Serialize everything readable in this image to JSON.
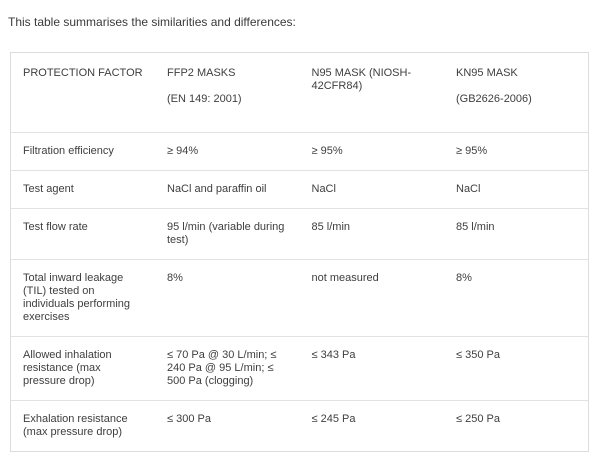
{
  "page": {
    "intro": "This table summarises the similarities and differences:"
  },
  "colors": {
    "background": "#ffffff",
    "text": "#3e3e3e",
    "border": "#dcdcdc",
    "row_divider": "#e2e2e2"
  },
  "table": {
    "columns": [
      {
        "title": "PROTECTION FACTOR",
        "subtitle": ""
      },
      {
        "title": "FFP2 MASKS",
        "subtitle": "(EN 149: 2001)"
      },
      {
        "title": "N95 MASK (NIOSH-42CFR84)",
        "subtitle": ""
      },
      {
        "title": "KN95 MASK",
        "subtitle": "(GB2626-2006)"
      }
    ],
    "rows": [
      {
        "label": "Filtration efficiency",
        "values": [
          "≥ 94%",
          "≥ 95%",
          "≥ 95%"
        ]
      },
      {
        "label": "Test agent",
        "values": [
          "NaCl and paraffin oil",
          "NaCl",
          "NaCl"
        ]
      },
      {
        "label": "Test flow rate",
        "values": [
          "95 l/min (variable during test)",
          "85 l/min",
          "85 l/min"
        ]
      },
      {
        "label": "Total inward leakage (TIL) tested on individuals performing exercises",
        "values": [
          "8%",
          "not measured",
          "8%"
        ]
      },
      {
        "label": "Allowed inhalation resistance (max pressure drop)",
        "values": [
          "≤ 70 Pa @ 30 L/min; ≤ 240 Pa @ 95 L/min; ≤ 500 Pa (clogging)",
          "≤ 343 Pa",
          "≤ 350 Pa"
        ]
      },
      {
        "label": "Exhalation resistance (max pressure drop)",
        "values": [
          "≤ 300 Pa",
          "≤ 245 Pa",
          "≤ 250 Pa"
        ]
      }
    ]
  }
}
